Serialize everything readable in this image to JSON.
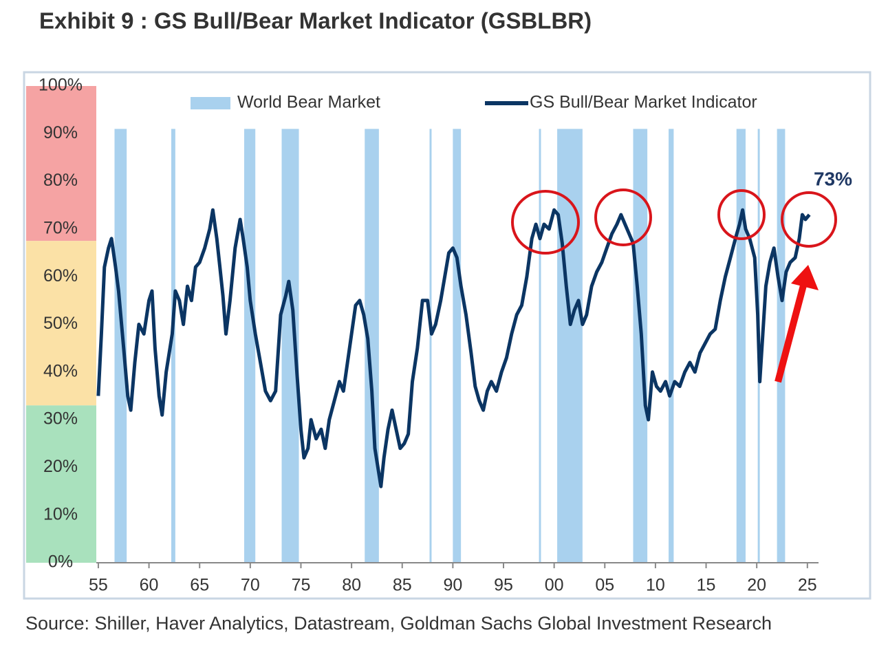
{
  "chart_data": {
    "type": "line",
    "title": "Exhibit 9 : GS Bull/Bear Market Indicator (GSBLBR)",
    "source": "Source: Shiller, Haver Analytics, Datastream, Goldman Sachs Global Investment Research",
    "annotation": "73%",
    "legend": "top",
    "xlim": [
      1954.8,
      2026.1
    ],
    "ylim": [
      0,
      100
    ],
    "xticks": [
      {
        "value": 1955,
        "label": "55"
      },
      {
        "value": 1960,
        "label": "60"
      },
      {
        "value": 1965,
        "label": "65"
      },
      {
        "value": 1970,
        "label": "70"
      },
      {
        "value": 1975,
        "label": "75"
      },
      {
        "value": 1980,
        "label": "80"
      },
      {
        "value": 1985,
        "label": "85"
      },
      {
        "value": 1990,
        "label": "90"
      },
      {
        "value": 1995,
        "label": "95"
      },
      {
        "value": 2000,
        "label": "00"
      },
      {
        "value": 2005,
        "label": "05"
      },
      {
        "value": 2010,
        "label": "10"
      },
      {
        "value": 2015,
        "label": "15"
      },
      {
        "value": 2020,
        "label": "20"
      },
      {
        "value": 2025,
        "label": "25"
      }
    ],
    "yticks": [
      {
        "value": 0,
        "label": "0%"
      },
      {
        "value": 10,
        "label": "10%"
      },
      {
        "value": 20,
        "label": "20%"
      },
      {
        "value": 30,
        "label": "30%"
      },
      {
        "value": 40,
        "label": "40%"
      },
      {
        "value": 50,
        "label": "50%"
      },
      {
        "value": 60,
        "label": "60%"
      },
      {
        "value": 70,
        "label": "70%"
      },
      {
        "value": 80,
        "label": "80%"
      },
      {
        "value": 90,
        "label": "90%"
      },
      {
        "value": 100,
        "label": "100%"
      }
    ],
    "zones": [
      {
        "from": 67.5,
        "to": 100,
        "color": "#f5a3a3"
      },
      {
        "from": 33,
        "to": 67.5,
        "color": "#fbe1a6"
      },
      {
        "from": 0,
        "to": 33,
        "color": "#a9e1bd"
      }
    ],
    "spans": {
      "name": "World Bear Market",
      "color": "#a9d1ee",
      "height": 91,
      "values": [
        [
          1956.6,
          1957.8
        ],
        [
          1962.2,
          1962.6
        ],
        [
          1969.4,
          1970.5
        ],
        [
          1973.1,
          1974.8
        ],
        [
          1981.3,
          1982.7
        ],
        [
          1987.7,
          1987.9
        ],
        [
          1990.0,
          1990.8
        ],
        [
          1998.5,
          1998.7
        ],
        [
          2000.3,
          2002.8
        ],
        [
          2007.8,
          2009.2
        ],
        [
          2011.3,
          2011.8
        ],
        [
          2018.0,
          2018.9
        ],
        [
          2020.1,
          2020.3
        ],
        [
          2022.0,
          2022.8
        ]
      ]
    },
    "series": [
      {
        "name": "GS Bull/Bear Market Indicator",
        "color": "#0b3563",
        "x": [
          1955.0,
          1955.3,
          1955.6,
          1956,
          1956.3,
          1956.7,
          1957,
          1957.5,
          1957.9,
          1958.2,
          1958.6,
          1959,
          1959.5,
          1960,
          1960.3,
          1960.6,
          1961,
          1961.3,
          1961.7,
          1962,
          1962.3,
          1962.6,
          1963,
          1963.4,
          1963.8,
          1964.2,
          1964.6,
          1965,
          1965.5,
          1966,
          1966.3,
          1966.7,
          1967,
          1967.3,
          1967.6,
          1968,
          1968.5,
          1969,
          1969.3,
          1969.7,
          1970,
          1970.5,
          1971,
          1971.5,
          1972,
          1972.5,
          1973,
          1973.5,
          1973.8,
          1974.2,
          1974.6,
          1975,
          1975.3,
          1975.7,
          1976,
          1976.5,
          1977,
          1977.4,
          1977.8,
          1978.3,
          1978.8,
          1979.2,
          1979.6,
          1980,
          1980.4,
          1980.8,
          1981.2,
          1981.6,
          1982,
          1982.3,
          1982.6,
          1982.9,
          1983.2,
          1983.6,
          1984,
          1984.4,
          1984.8,
          1985.2,
          1985.6,
          1986,
          1986.5,
          1987,
          1987.5,
          1987.9,
          1988.3,
          1988.8,
          1989.2,
          1989.6,
          1990,
          1990.4,
          1990.8,
          1991.3,
          1991.8,
          1992.2,
          1992.6,
          1993,
          1993.4,
          1993.8,
          1994.3,
          1994.8,
          1995.3,
          1995.8,
          1996.3,
          1996.8,
          1997.3,
          1997.8,
          1998.2,
          1998.6,
          1999,
          1999.5,
          2000,
          2000.4,
          2000.8,
          2001.2,
          2001.6,
          2002,
          2002.4,
          2002.8,
          2003.2,
          2003.7,
          2004.2,
          2004.7,
          2005.2,
          2005.7,
          2006.2,
          2006.6,
          2007,
          2007.4,
          2007.8,
          2008.2,
          2008.6,
          2009,
          2009.3,
          2009.7,
          2010.1,
          2010.5,
          2011,
          2011.4,
          2011.9,
          2012.4,
          2012.9,
          2013.4,
          2013.9,
          2014.4,
          2014.9,
          2015.4,
          2015.9,
          2016.4,
          2016.9,
          2017.4,
          2017.9,
          2018.3,
          2018.6,
          2018.9,
          2019.3,
          2019.8,
          2020.1,
          2020.3,
          2020.6,
          2020.9,
          2021.3,
          2021.7,
          2022.1,
          2022.5,
          2022.9,
          2023.3,
          2023.8,
          2024.2,
          2024.5,
          2024.8,
          2025.2
        ],
        "values": [
          35,
          48,
          62,
          66,
          68,
          62,
          57,
          45,
          35,
          32,
          42,
          50,
          48,
          55,
          57,
          45,
          35,
          31,
          40,
          44,
          48,
          57,
          55,
          50,
          58,
          55,
          62,
          63,
          66,
          70,
          74,
          68,
          62,
          56,
          48,
          55,
          66,
          72,
          68,
          62,
          55,
          48,
          42,
          36,
          34,
          36,
          52,
          56,
          59,
          53,
          40,
          28,
          22,
          24,
          30,
          26,
          28,
          24,
          30,
          34,
          38,
          36,
          42,
          48,
          54,
          55,
          52,
          47,
          36,
          24,
          20,
          16,
          22,
          28,
          32,
          28,
          24,
          25,
          27,
          38,
          45,
          55,
          55,
          48,
          50,
          55,
          60,
          65,
          66,
          64,
          58,
          52,
          44,
          37,
          34,
          32,
          36,
          38,
          36,
          40,
          43,
          48,
          52,
          54,
          60,
          68,
          71,
          68,
          71,
          70,
          74,
          73,
          67,
          58,
          50,
          53,
          55,
          50,
          52,
          58,
          61,
          63,
          66,
          69,
          71,
          73,
          71,
          69,
          67,
          58,
          48,
          33,
          30,
          40,
          37,
          36,
          38,
          35,
          38,
          37,
          40,
          42,
          40,
          44,
          46,
          48,
          49,
          55,
          60,
          64,
          68,
          71,
          74,
          70,
          68,
          64,
          52,
          38,
          48,
          58,
          63,
          66,
          60,
          55,
          61,
          63,
          64,
          68,
          73,
          72,
          73
        ]
      }
    ]
  }
}
